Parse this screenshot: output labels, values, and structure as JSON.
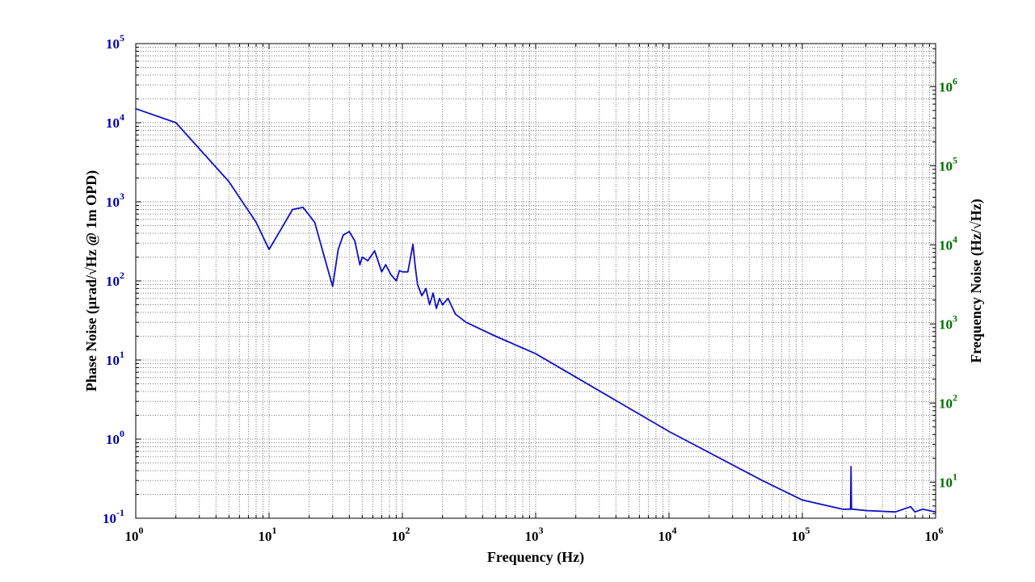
{
  "chart_data": {
    "type": "line",
    "title": "",
    "xlabel": "Frequency (Hz)",
    "ylabel": "Phase Noise (μrad/√Hz @ 1m OPD)",
    "y2label": "Frequency Noise (Hz/√Hz)",
    "xscale": "log",
    "yscale": "log",
    "y2scale": "log",
    "xlim": [
      1,
      1000000
    ],
    "ylim": [
      0.1,
      100000
    ],
    "y2lim": [
      3.5,
      3500000
    ],
    "grid": true,
    "xticks": [
      {
        "base": "10",
        "exp": "0"
      },
      {
        "base": "10",
        "exp": "1"
      },
      {
        "base": "10",
        "exp": "2"
      },
      {
        "base": "10",
        "exp": "3"
      },
      {
        "base": "10",
        "exp": "4"
      },
      {
        "base": "10",
        "exp": "5"
      },
      {
        "base": "10",
        "exp": "6"
      }
    ],
    "yticks": [
      {
        "base": "10",
        "exp": "-1"
      },
      {
        "base": "10",
        "exp": "0"
      },
      {
        "base": "10",
        "exp": "1"
      },
      {
        "base": "10",
        "exp": "2"
      },
      {
        "base": "10",
        "exp": "3"
      },
      {
        "base": "10",
        "exp": "4"
      },
      {
        "base": "10",
        "exp": "5"
      }
    ],
    "y2ticks": [
      {
        "base": "10",
        "exp": "1"
      },
      {
        "base": "10",
        "exp": "2"
      },
      {
        "base": "10",
        "exp": "3"
      },
      {
        "base": "10",
        "exp": "4"
      },
      {
        "base": "10",
        "exp": "5"
      },
      {
        "base": "10",
        "exp": "6"
      }
    ],
    "colors": {
      "line": "#1010c8",
      "left_axis": "#0000b0",
      "right_axis": "#007000",
      "grid": "#7a7a7a"
    },
    "series": [
      {
        "x": [
          1,
          2,
          5,
          8,
          10,
          12,
          15,
          18,
          22,
          26,
          30,
          33,
          36,
          40,
          44,
          48,
          50,
          55,
          62,
          70,
          75,
          82,
          90,
          95,
          100,
          110,
          120,
          125,
          130,
          140,
          150,
          160,
          170,
          180,
          190,
          200,
          220,
          250,
          300,
          500,
          1000,
          10000,
          50000,
          100000,
          200000,
          230000,
          232000,
          234000,
          240000,
          300000,
          500000,
          650000,
          700000,
          800000,
          1000000
        ],
        "y": [
          15000,
          10000,
          1800,
          550,
          250,
          420,
          800,
          850,
          550,
          200,
          85,
          250,
          380,
          420,
          320,
          160,
          200,
          180,
          240,
          130,
          160,
          120,
          100,
          135,
          130,
          130,
          290,
          150,
          90,
          65,
          80,
          50,
          70,
          45,
          60,
          50,
          60,
          38,
          30,
          20,
          12,
          1.25,
          0.3,
          0.17,
          0.13,
          0.13,
          0.45,
          0.13,
          0.13,
          0.125,
          0.12,
          0.14,
          0.12,
          0.13,
          0.12
        ]
      }
    ]
  }
}
